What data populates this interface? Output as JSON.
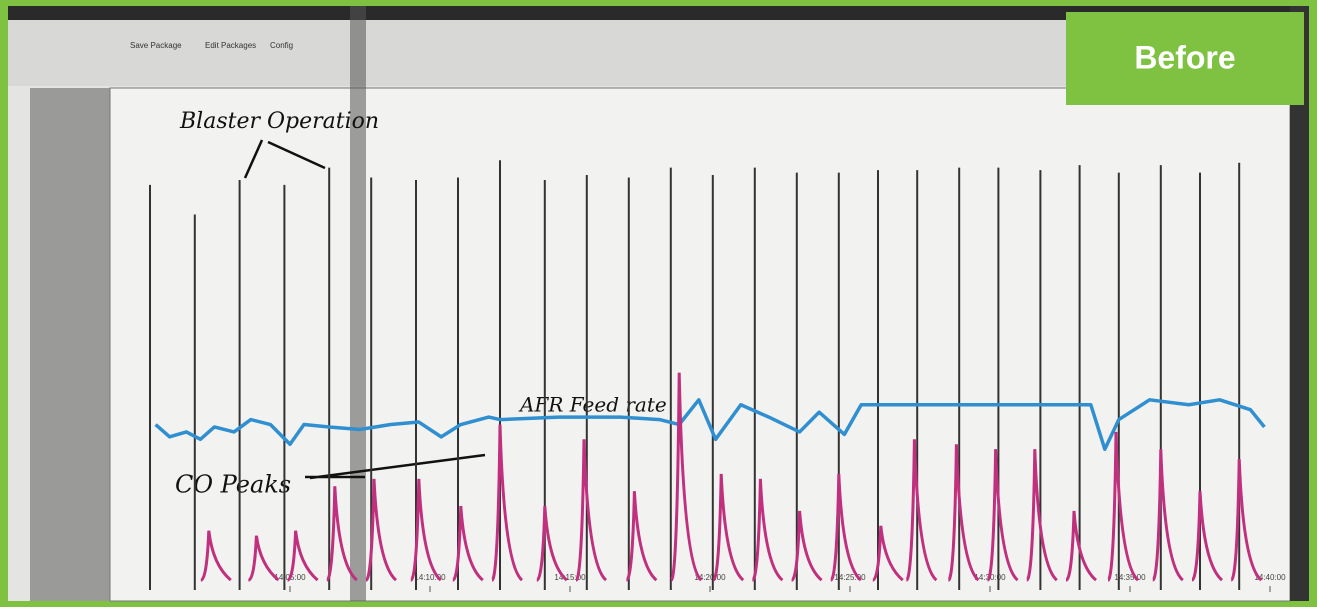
{
  "toolbar": {
    "save": "Save Package",
    "edit": "Edit Packages",
    "config": "Config"
  },
  "badge": "Before",
  "chart_data": {
    "type": "trend",
    "annotations": [
      "Blaster Operation",
      "AFR Feed rate",
      "CO Peaks"
    ],
    "xlim": [
      840,
      880.5
    ],
    "ylim": [
      0,
      2
    ],
    "xticks": [
      {
        "value": 845,
        "label": "14:05:00"
      },
      {
        "value": 850,
        "label": "14:10:00"
      },
      {
        "value": 855,
        "label": "14:15:00"
      },
      {
        "value": 860,
        "label": "14:20:00"
      },
      {
        "value": 865,
        "label": "14:25:00"
      },
      {
        "value": 870,
        "label": "14:30:00"
      },
      {
        "value": 875,
        "label": "14:35:00"
      },
      {
        "value": 880,
        "label": "14:40:00"
      }
    ],
    "series": [
      {
        "kind": "spike",
        "color": "#333333",
        "x": [
          840.0,
          841.6,
          843.2,
          844.8,
          846.4,
          847.9,
          849.5,
          851.0,
          852.5,
          854.1,
          855.6,
          857.1,
          858.6,
          860.1,
          861.6,
          863.1,
          864.6,
          866.0,
          867.4,
          868.9,
          870.3,
          871.8,
          873.2,
          874.6,
          876.1,
          877.5,
          878.9
        ],
        "values": [
          1.64,
          1.52,
          1.66,
          1.64,
          1.71,
          1.67,
          1.66,
          1.67,
          1.74,
          1.66,
          1.68,
          1.67,
          1.71,
          1.68,
          1.71,
          1.69,
          1.69,
          1.7,
          1.7,
          1.71,
          1.71,
          1.7,
          1.72,
          1.69,
          1.72,
          1.69,
          1.73
        ]
      },
      {
        "kind": "line",
        "color": "#2f8fd0",
        "x": [
          840.2,
          840.7,
          841.3,
          841.8,
          842.3,
          843.0,
          843.6,
          844.3,
          845.0,
          845.5,
          846.4,
          847.5,
          848.6,
          849.6,
          850.4,
          851.1,
          852.1,
          852.5,
          854.6,
          856.8,
          858.2,
          858.9,
          859.6,
          860.2,
          861.1,
          862.1,
          863.2,
          863.9,
          864.8,
          865.4,
          866.8,
          868.9,
          871.1,
          873.6,
          874.1,
          874.6,
          875.7,
          877.1,
          878.2,
          879.3,
          879.8
        ],
        "values": [
          0.67,
          0.62,
          0.64,
          0.61,
          0.66,
          0.64,
          0.69,
          0.67,
          0.59,
          0.67,
          0.66,
          0.65,
          0.67,
          0.68,
          0.62,
          0.67,
          0.7,
          0.69,
          0.7,
          0.7,
          0.69,
          0.67,
          0.77,
          0.61,
          0.75,
          0.7,
          0.64,
          0.72,
          0.63,
          0.75,
          0.75,
          0.75,
          0.75,
          0.75,
          0.57,
          0.69,
          0.77,
          0.75,
          0.77,
          0.73,
          0.66
        ]
      },
      {
        "kind": "peak",
        "color": "#c0307f",
        "x": [
          842.1,
          843.8,
          845.2,
          846.6,
          848.0,
          849.6,
          851.1,
          852.5,
          854.1,
          855.5,
          857.3,
          858.9,
          860.4,
          861.8,
          863.2,
          864.6,
          866.1,
          867.3,
          868.8,
          870.2,
          871.6,
          873.0,
          874.5,
          876.1,
          877.5,
          878.9
        ],
        "values": [
          0.24,
          0.22,
          0.24,
          0.42,
          0.45,
          0.45,
          0.34,
          0.67,
          0.34,
          0.61,
          0.4,
          0.88,
          0.47,
          0.45,
          0.32,
          0.47,
          0.26,
          0.61,
          0.59,
          0.57,
          0.57,
          0.32,
          0.64,
          0.57,
          0.4,
          0.53
        ]
      }
    ]
  }
}
